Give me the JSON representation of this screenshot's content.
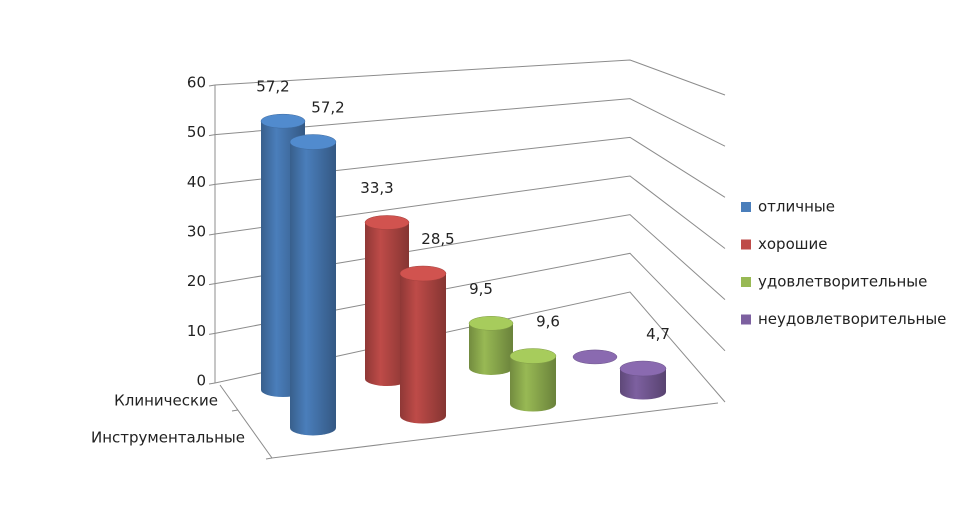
{
  "chart_data": {
    "type": "cylinder3d",
    "categories": [
      "Клинические",
      "Инструментальные"
    ],
    "series": [
      {
        "name": "отличные",
        "color": "#4a7ebb",
        "values": [
          57.2,
          57.2
        ],
        "value_labels": [
          "57,2",
          "57,2"
        ]
      },
      {
        "name": "хорошие",
        "color": "#be4b48",
        "values": [
          33.3,
          28.5
        ],
        "value_labels": [
          "33,3",
          "28,5"
        ]
      },
      {
        "name": "удовлетворительные",
        "color": "#98b954",
        "values": [
          9.5,
          9.6
        ],
        "value_labels": [
          "9,5",
          "9,6"
        ]
      },
      {
        "name": "неудовлетворительные",
        "color": "#7d60a0",
        "values": [
          0,
          4.7
        ],
        "value_labels": [
          null,
          "4,7"
        ]
      }
    ],
    "ylim": [
      0,
      60
    ],
    "yticks": [
      0,
      10,
      20,
      30,
      40,
      50,
      60
    ],
    "grid": true,
    "legend": "right"
  }
}
